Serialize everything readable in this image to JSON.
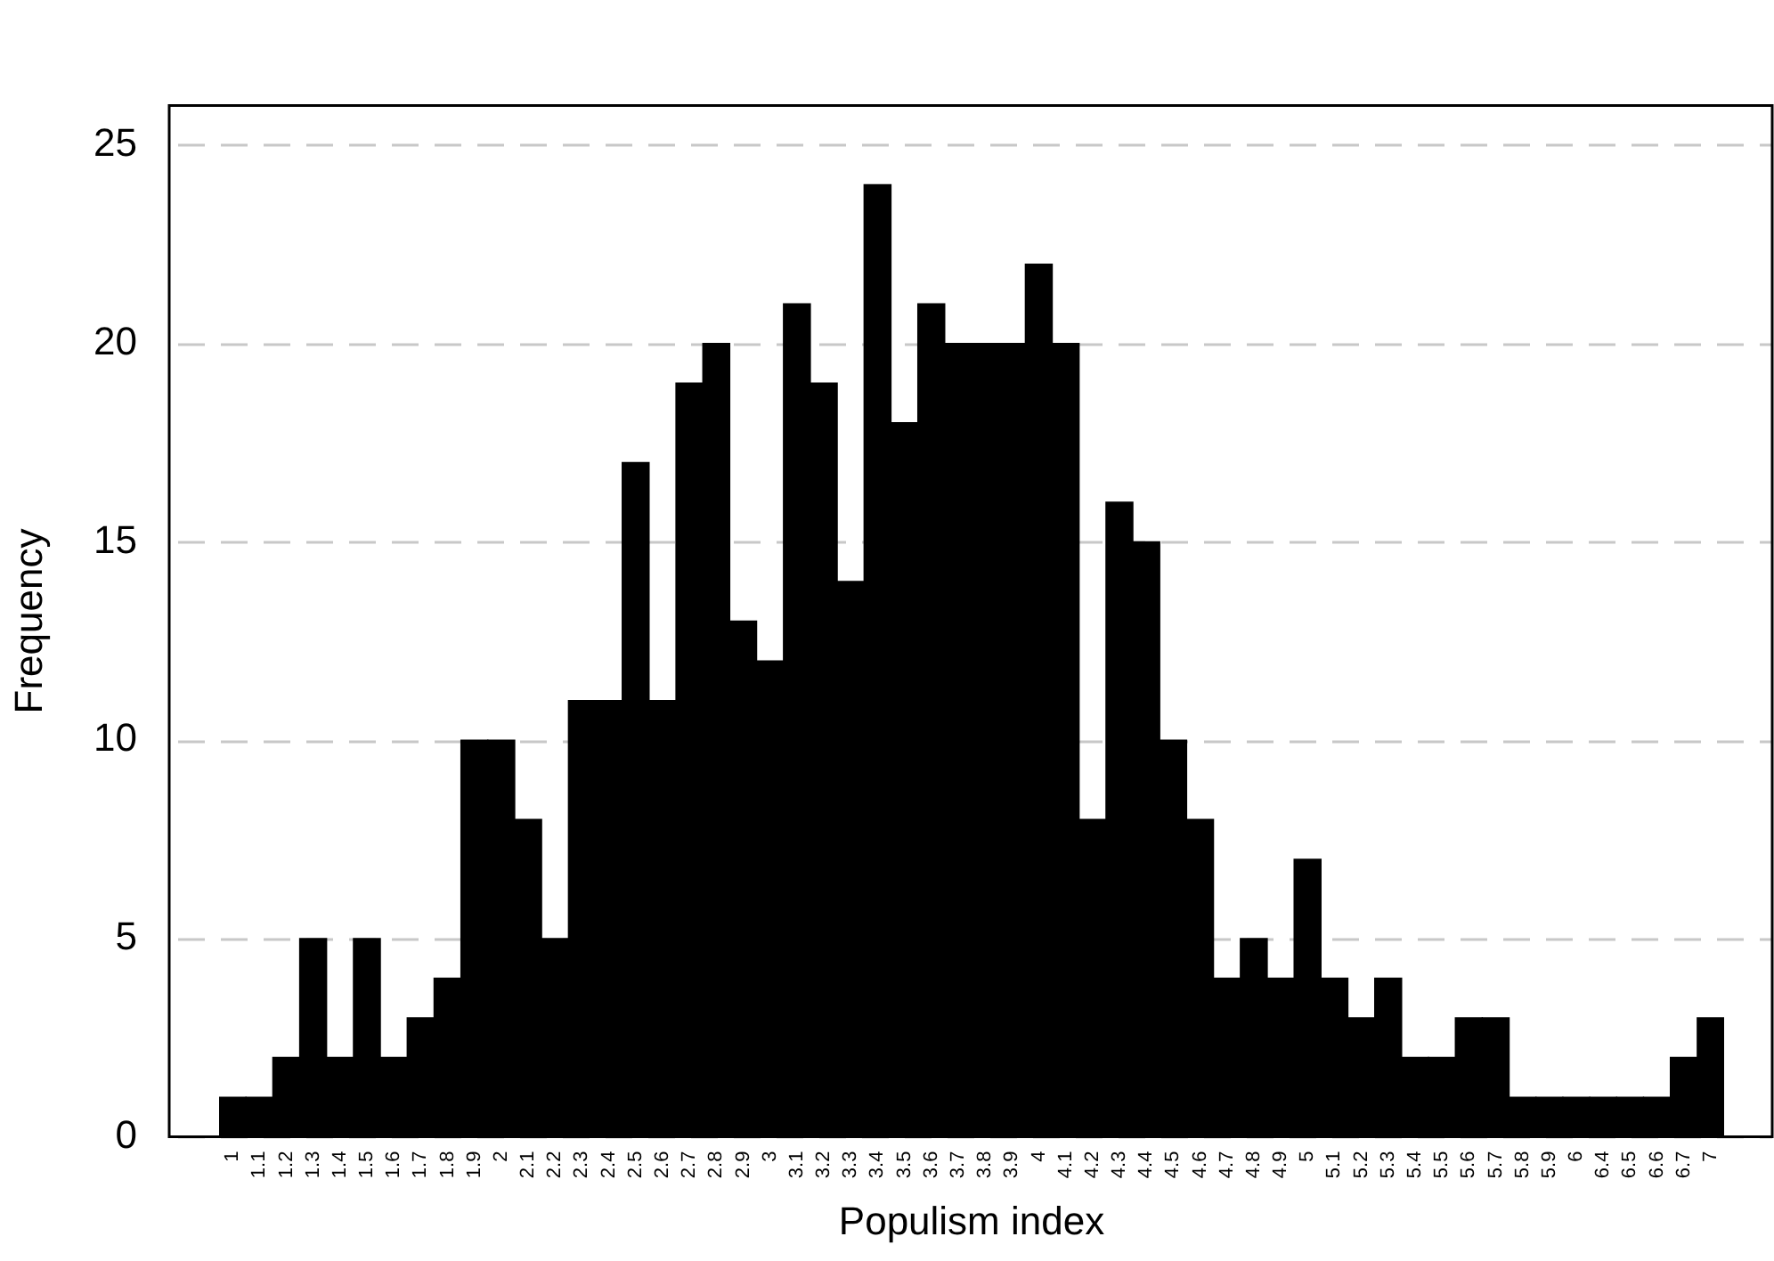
{
  "chart_data": {
    "type": "bar",
    "xlabel": "Populism index",
    "ylabel": "Frequency",
    "categories": [
      "1",
      "1.1",
      "1.2",
      "1.3",
      "1.4",
      "1.5",
      "1.6",
      "1.7",
      "1.8",
      "1.9",
      "2",
      "2.1",
      "2.2",
      "2.3",
      "2.4",
      "2.5",
      "2.6",
      "2.7",
      "2.8",
      "2.9",
      "3",
      "3.1",
      "3.2",
      "3.3",
      "3.4",
      "3.5",
      "3.6",
      "3.7",
      "3.8",
      "3.9",
      "4",
      "4.1",
      "4.2",
      "4.3",
      "4.4",
      "4.5",
      "4.6",
      "4.7",
      "4.8",
      "4.9",
      "5",
      "5.1",
      "5.2",
      "5.3",
      "5.4",
      "5.5",
      "5.6",
      "5.7",
      "5.8",
      "5.9",
      "6",
      "6.4",
      "6.5",
      "6.6",
      "6.7",
      "7"
    ],
    "values": [
      1,
      1,
      2,
      5,
      2,
      5,
      2,
      3,
      4,
      10,
      10,
      8,
      5,
      11,
      11,
      17,
      11,
      19,
      20,
      13,
      12,
      21,
      19,
      14,
      24,
      18,
      21,
      20,
      20,
      20,
      22,
      20,
      8,
      16,
      15,
      10,
      8,
      4,
      5,
      4,
      7,
      4,
      3,
      4,
      2,
      2,
      3,
      3,
      1,
      1,
      1,
      1,
      1,
      1,
      2,
      3
    ],
    "color": "#000000",
    "ylim": [
      0,
      26
    ],
    "yticks": [
      0,
      5,
      10,
      15,
      20,
      25
    ],
    "grid": "y",
    "legend": false
  }
}
